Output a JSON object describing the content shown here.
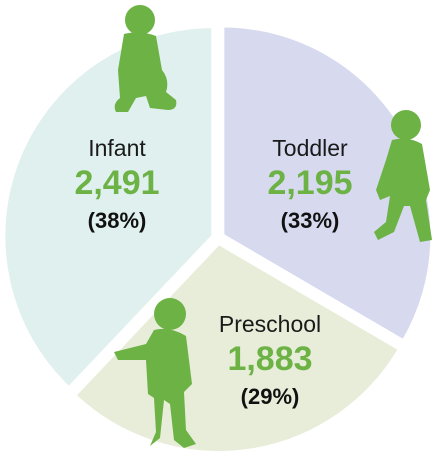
{
  "chart_data": {
    "type": "pie",
    "categories": [
      "Toddler",
      "Preschool",
      "Infant"
    ],
    "values": [
      2195,
      1883,
      2491
    ],
    "value_labels": [
      "2,195",
      "1,883",
      "2,491"
    ],
    "percentages": [
      33,
      29,
      38
    ],
    "percentage_labels": [
      "(33%)",
      "(29%)",
      "(38%)"
    ],
    "colors": [
      "#d7d9ef",
      "#e7edd9",
      "#dff0ee"
    ]
  }
}
